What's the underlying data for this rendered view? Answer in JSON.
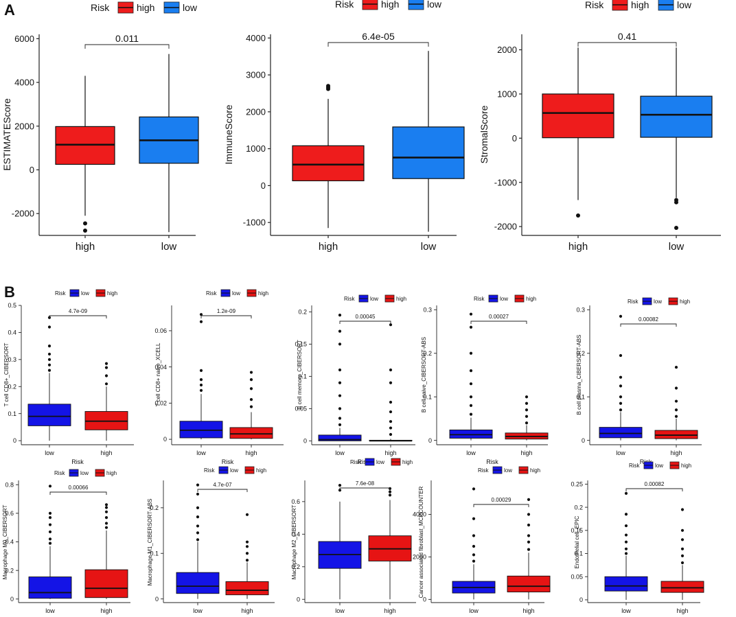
{
  "panel_labels": [
    "A",
    "B"
  ],
  "colors": {
    "top_high": "#ee1c1c",
    "top_low": "#1a7ef0",
    "bottom_low": "#1414e6",
    "bottom_high": "#e61414"
  },
  "chart_data": [
    {
      "type": "boxplot",
      "panel": "A",
      "title": "",
      "legend_position": "top",
      "legend": {
        "title": "Risk",
        "items": [
          "high",
          "low"
        ]
      },
      "xlabel": "",
      "ylabel": "ESTIMATEScore",
      "categories": [
        "high",
        "low"
      ],
      "ylim": [
        -3000,
        6200
      ],
      "yticks": [
        -2000,
        0,
        2000,
        4000,
        6000
      ],
      "boxes": [
        {
          "group": "high",
          "min": -2100,
          "q1": 250,
          "median": 1150,
          "q3": 1980,
          "max": 4300,
          "outliers": [
            -2450,
            -2780
          ]
        },
        {
          "group": "low",
          "min": -2850,
          "q1": 300,
          "median": 1350,
          "q3": 2420,
          "max": 5300,
          "outliers": []
        }
      ],
      "pvalue": "0.011"
    },
    {
      "type": "boxplot",
      "panel": "A",
      "title": "",
      "legend_position": "top",
      "legend": {
        "title": "Risk",
        "items": [
          "high",
          "low"
        ]
      },
      "xlabel": "",
      "ylabel": "ImmuneScore",
      "categories": [
        "high",
        "low"
      ],
      "ylim": [
        -1350,
        4100
      ],
      "yticks": [
        -1000,
        0,
        1000,
        2000,
        3000,
        4000
      ],
      "boxes": [
        {
          "group": "high",
          "min": -1150,
          "q1": 130,
          "median": 570,
          "q3": 1080,
          "max": 2350,
          "outliers": [
            2620,
            2660,
            2700
          ]
        },
        {
          "group": "low",
          "min": -1250,
          "q1": 190,
          "median": 760,
          "q3": 1590,
          "max": 3650,
          "outliers": []
        }
      ],
      "pvalue": "6.4e-05"
    },
    {
      "type": "boxplot",
      "panel": "A",
      "title": "",
      "legend_position": "top",
      "legend": {
        "title": "Risk",
        "items": [
          "high",
          "low"
        ]
      },
      "xlabel": "",
      "ylabel": "StromalScore",
      "categories": [
        "high",
        "low"
      ],
      "ylim": [
        -2200,
        2350
      ],
      "yticks": [
        -2000,
        -1000,
        0,
        1000,
        2000
      ],
      "boxes": [
        {
          "group": "high",
          "min": -1400,
          "q1": 10,
          "median": 570,
          "q3": 1000,
          "max": 2050,
          "outliers": [
            -1750
          ]
        },
        {
          "group": "low",
          "min": -1350,
          "q1": 20,
          "median": 530,
          "q3": 950,
          "max": 2050,
          "outliers": [
            -1400,
            -1450,
            -2030
          ]
        }
      ],
      "pvalue": "0.41"
    },
    {
      "type": "boxplot",
      "panel": "B",
      "title": "",
      "legend_position": "top",
      "legend": {
        "title": "Risk",
        "items": [
          "low",
          "high"
        ]
      },
      "xlabel": "Risk",
      "ylabel": "T cell CD8+_CIBERSORT",
      "categories": [
        "low",
        "high"
      ],
      "ylim": [
        -0.015,
        0.5
      ],
      "yticks": [
        0.0,
        0.1,
        0.2,
        0.3,
        0.4,
        0.5
      ],
      "boxes": [
        {
          "group": "low",
          "min": 0.0,
          "q1": 0.055,
          "median": 0.09,
          "q3": 0.135,
          "max": 0.25,
          "outliers": [
            0.26,
            0.28,
            0.3,
            0.32,
            0.35,
            0.42,
            0.455
          ]
        },
        {
          "group": "high",
          "min": 0.0,
          "q1": 0.04,
          "median": 0.072,
          "q3": 0.108,
          "max": 0.2,
          "outliers": [
            0.21,
            0.24,
            0.27,
            0.285
          ]
        }
      ],
      "pvalue": "4.7e-09"
    },
    {
      "type": "boxplot",
      "panel": "B",
      "title": "",
      "legend_position": "top",
      "legend": {
        "title": "Risk",
        "items": [
          "low",
          "high"
        ]
      },
      "xlabel": "Risk",
      "ylabel": "T cell CD8+ naive_XCELL",
      "categories": [
        "low",
        "high"
      ],
      "ylim": [
        -0.003,
        0.074
      ],
      "yticks": [
        0.0,
        0.02,
        0.04,
        0.06
      ],
      "boxes": [
        {
          "group": "low",
          "min": 0.0,
          "q1": 0.0008,
          "median": 0.005,
          "q3": 0.01,
          "max": 0.025,
          "outliers": [
            0.027,
            0.03,
            0.033,
            0.038,
            0.065,
            0.069
          ]
        },
        {
          "group": "high",
          "min": 0.0,
          "q1": 0.0005,
          "median": 0.003,
          "q3": 0.0065,
          "max": 0.015,
          "outliers": [
            0.018,
            0.022,
            0.028,
            0.033,
            0.037
          ]
        }
      ],
      "pvalue": "1.2e-09"
    },
    {
      "type": "boxplot",
      "panel": "B",
      "title": "",
      "legend_position": "top",
      "legend": {
        "title": "Risk",
        "items": [
          "low",
          "high"
        ]
      },
      "xlabel": "Risk",
      "ylabel": "B cell memory_CIBERSORT",
      "categories": [
        "low",
        "high"
      ],
      "ylim": [
        -0.006,
        0.21
      ],
      "yticks": [
        0.0,
        0.05,
        0.1,
        0.15,
        0.2
      ],
      "boxes": [
        {
          "group": "low",
          "min": 0.0,
          "q1": 0.0,
          "median": 0.002,
          "q3": 0.009,
          "max": 0.02,
          "outliers": [
            0.025,
            0.035,
            0.05,
            0.07,
            0.09,
            0.11,
            0.15,
            0.17,
            0.195
          ]
        },
        {
          "group": "high",
          "min": 0.0,
          "q1": 0.0,
          "median": 0.0,
          "q3": 0.001,
          "max": 0.003,
          "outliers": [
            0.01,
            0.02,
            0.03,
            0.045,
            0.06,
            0.09,
            0.11,
            0.18
          ]
        }
      ],
      "pvalue": "0.00045"
    },
    {
      "type": "boxplot",
      "panel": "B",
      "title": "",
      "legend_position": "top",
      "legend": {
        "title": "Risk",
        "items": [
          "low",
          "high"
        ]
      },
      "xlabel": "Risk",
      "ylabel": "B cell naive_CIBERSORT-ABS",
      "categories": [
        "low",
        "high"
      ],
      "ylim": [
        -0.01,
        0.31
      ],
      "yticks": [
        0.0,
        0.1,
        0.2,
        0.3
      ],
      "boxes": [
        {
          "group": "low",
          "min": 0.0,
          "q1": 0.005,
          "median": 0.013,
          "q3": 0.024,
          "max": 0.052,
          "outliers": [
            0.06,
            0.08,
            0.1,
            0.13,
            0.16,
            0.2,
            0.26,
            0.29
          ]
        },
        {
          "group": "high",
          "min": 0.0,
          "q1": 0.003,
          "median": 0.009,
          "q3": 0.017,
          "max": 0.035,
          "outliers": [
            0.04,
            0.055,
            0.07,
            0.085,
            0.1
          ]
        }
      ],
      "pvalue": "0.00027"
    },
    {
      "type": "boxplot",
      "panel": "B",
      "title": "",
      "legend_position": "top",
      "legend": {
        "title": "Risk",
        "items": [
          "low",
          "high"
        ]
      },
      "xlabel": "Risk",
      "ylabel": "B cell plasma_CIBERSORT-ABS",
      "categories": [
        "low",
        "high"
      ],
      "ylim": [
        -0.01,
        0.31
      ],
      "yticks": [
        0.0,
        0.1,
        0.2,
        0.3
      ],
      "boxes": [
        {
          "group": "low",
          "min": 0.0,
          "q1": 0.006,
          "median": 0.016,
          "q3": 0.03,
          "max": 0.065,
          "outliers": [
            0.07,
            0.085,
            0.1,
            0.125,
            0.145,
            0.195,
            0.285
          ]
        },
        {
          "group": "high",
          "min": 0.0,
          "q1": 0.004,
          "median": 0.012,
          "q3": 0.023,
          "max": 0.05,
          "outliers": [
            0.055,
            0.07,
            0.09,
            0.12,
            0.168
          ]
        }
      ],
      "pvalue": "0.00082"
    },
    {
      "type": "boxplot",
      "panel": "B",
      "title": "",
      "legend_position": "top",
      "legend": {
        "title": "Risk",
        "items": [
          "low",
          "high"
        ]
      },
      "xlabel": "Risk",
      "ylabel": "Macrophage M0_CIBERSORT",
      "categories": [
        "low",
        "high"
      ],
      "ylim": [
        -0.025,
        0.83
      ],
      "yticks": [
        0.0,
        0.2,
        0.4,
        0.6,
        0.8
      ],
      "boxes": [
        {
          "group": "low",
          "min": 0.0,
          "q1": 0.005,
          "median": 0.045,
          "q3": 0.155,
          "max": 0.37,
          "outliers": [
            0.39,
            0.42,
            0.47,
            0.52,
            0.57,
            0.6,
            0.79
          ]
        },
        {
          "group": "high",
          "min": 0.0,
          "q1": 0.01,
          "median": 0.075,
          "q3": 0.205,
          "max": 0.48,
          "outliers": [
            0.5,
            0.53,
            0.57,
            0.61,
            0.64,
            0.66
          ]
        }
      ],
      "pvalue": "0.00066"
    },
    {
      "type": "boxplot",
      "panel": "B",
      "title": "",
      "legend_position": "top",
      "legend": {
        "title": "Risk",
        "items": [
          "low",
          "high"
        ]
      },
      "xlabel": "Risk",
      "ylabel": "Macrophage M1_CIBERSORT-ABS",
      "categories": [
        "low",
        "high"
      ],
      "ylim": [
        -0.008,
        0.26
      ],
      "yticks": [
        0.0,
        0.1,
        0.2
      ],
      "boxes": [
        {
          "group": "low",
          "min": 0.0,
          "q1": 0.012,
          "median": 0.028,
          "q3": 0.058,
          "max": 0.125,
          "outliers": [
            0.13,
            0.145,
            0.16,
            0.18,
            0.2,
            0.23,
            0.25
          ]
        },
        {
          "group": "high",
          "min": 0.0,
          "q1": 0.009,
          "median": 0.019,
          "q3": 0.038,
          "max": 0.08,
          "outliers": [
            0.085,
            0.1,
            0.115,
            0.125,
            0.185
          ]
        }
      ],
      "pvalue": "4.7e-07"
    },
    {
      "type": "boxplot",
      "panel": "B",
      "title": "",
      "legend_position": "top",
      "legend": {
        "title": "Risk",
        "items": [
          "low",
          "high"
        ]
      },
      "xlabel": "Risk",
      "ylabel": "Macrophage M2_CIBERSORT",
      "categories": [
        "low",
        "high"
      ],
      "ylim": [
        -0.02,
        0.73
      ],
      "yticks": [
        0.0,
        0.2,
        0.4,
        0.6
      ],
      "boxes": [
        {
          "group": "low",
          "min": 0.0,
          "q1": 0.19,
          "median": 0.275,
          "q3": 0.355,
          "max": 0.6,
          "outliers": [
            0.67,
            0.7
          ]
        },
        {
          "group": "high",
          "min": 0.0,
          "q1": 0.235,
          "median": 0.31,
          "q3": 0.39,
          "max": 0.61,
          "outliers": [
            0.64,
            0.66,
            0.68
          ]
        }
      ],
      "pvalue": "7.6e-08"
    },
    {
      "type": "boxplot",
      "panel": "B",
      "title": "",
      "legend_position": "top",
      "legend": {
        "title": "Risk",
        "items": [
          "low",
          "high"
        ]
      },
      "xlabel": "Risk",
      "ylabel": "Cancer associated fibroblast_MCPCOUNTER",
      "categories": [
        "low",
        "high"
      ],
      "ylim": [
        -150,
        5600
      ],
      "yticks": [
        0,
        2000,
        4000
      ],
      "boxes": [
        {
          "group": "low",
          "min": 0,
          "q1": 300,
          "median": 560,
          "q3": 850,
          "max": 1650,
          "outliers": [
            1800,
            2100,
            2500,
            3000,
            3800,
            5200
          ]
        },
        {
          "group": "high",
          "min": 0,
          "q1": 350,
          "median": 620,
          "q3": 1100,
          "max": 2200,
          "outliers": [
            2350,
            2700,
            3000,
            3500,
            4000,
            4700
          ]
        }
      ],
      "pvalue": "0.00029"
    },
    {
      "type": "boxplot",
      "panel": "B",
      "title": "",
      "legend_position": "top",
      "legend": {
        "title": "Risk",
        "items": [
          "low",
          "high"
        ]
      },
      "xlabel": "Risk",
      "ylabel": "Endothelial cell_EPIC",
      "categories": [
        "low",
        "high"
      ],
      "ylim": [
        -0.006,
        0.258
      ],
      "yticks": [
        0.0,
        0.05,
        0.1,
        0.15,
        0.2,
        0.25
      ],
      "boxes": [
        {
          "group": "low",
          "min": 0.0,
          "q1": 0.019,
          "median": 0.03,
          "q3": 0.05,
          "max": 0.095,
          "outliers": [
            0.1,
            0.11,
            0.125,
            0.14,
            0.16,
            0.185,
            0.23
          ]
        },
        {
          "group": "high",
          "min": 0.0,
          "q1": 0.016,
          "median": 0.026,
          "q3": 0.04,
          "max": 0.075,
          "outliers": [
            0.08,
            0.095,
            0.11,
            0.13,
            0.15,
            0.195
          ]
        }
      ],
      "pvalue": "0.00082"
    }
  ]
}
